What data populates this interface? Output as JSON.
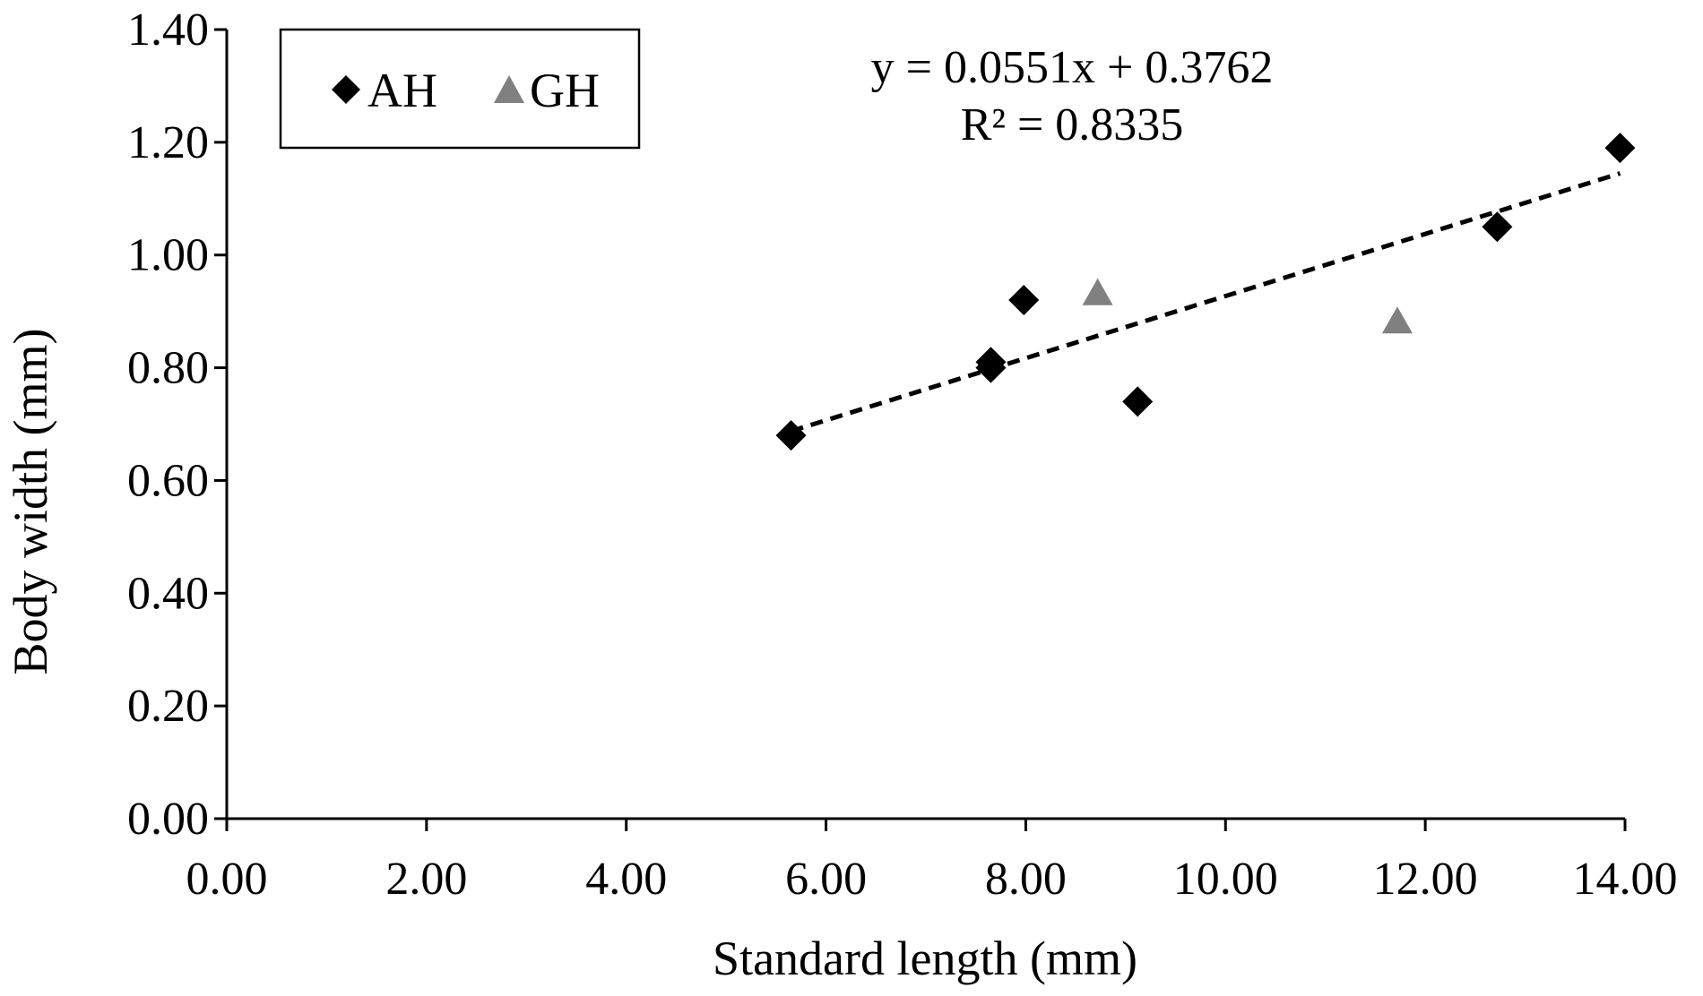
{
  "chart_data": {
    "type": "scatter",
    "xlabel": "Standard length (mm)",
    "ylabel": "Body width (mm)",
    "xlim": [
      0,
      14
    ],
    "ylim": [
      0,
      1.4
    ],
    "x_ticks": [
      0,
      2,
      4,
      6,
      8,
      10,
      12,
      14
    ],
    "x_tick_labels": [
      "0.00",
      "2.00",
      "4.00",
      "6.00",
      "8.00",
      "10.00",
      "12.00",
      "14.00"
    ],
    "y_ticks": [
      0,
      0.2,
      0.4,
      0.6,
      0.8,
      1.0,
      1.2,
      1.4
    ],
    "y_tick_labels": [
      "0.00",
      "0.20",
      "0.40",
      "0.60",
      "0.80",
      "1.00",
      "1.20",
      "1.40"
    ],
    "grid": false,
    "legend_position": "top-left",
    "series": [
      {
        "name": "AH",
        "marker": "diamond",
        "color": "#000000",
        "points": [
          {
            "x": 5.65,
            "y": 0.68
          },
          {
            "x": 7.65,
            "y": 0.81
          },
          {
            "x": 7.65,
            "y": 0.8
          },
          {
            "x": 7.98,
            "y": 0.92
          },
          {
            "x": 9.12,
            "y": 0.74
          },
          {
            "x": 12.72,
            "y": 1.05
          },
          {
            "x": 13.95,
            "y": 1.19
          }
        ]
      },
      {
        "name": "GH",
        "marker": "triangle",
        "color": "#808080",
        "points": [
          {
            "x": 8.72,
            "y": 0.93
          },
          {
            "x": 11.72,
            "y": 0.88
          }
        ]
      }
    ],
    "trendline": {
      "slope": 0.0551,
      "intercept": 0.3762,
      "x_range": [
        5.65,
        13.95
      ],
      "style": "dashed",
      "color": "#000000"
    },
    "annotations": {
      "equation": "y = 0.0551x + 0.3762",
      "r_squared": "R² = 0.8335"
    }
  }
}
